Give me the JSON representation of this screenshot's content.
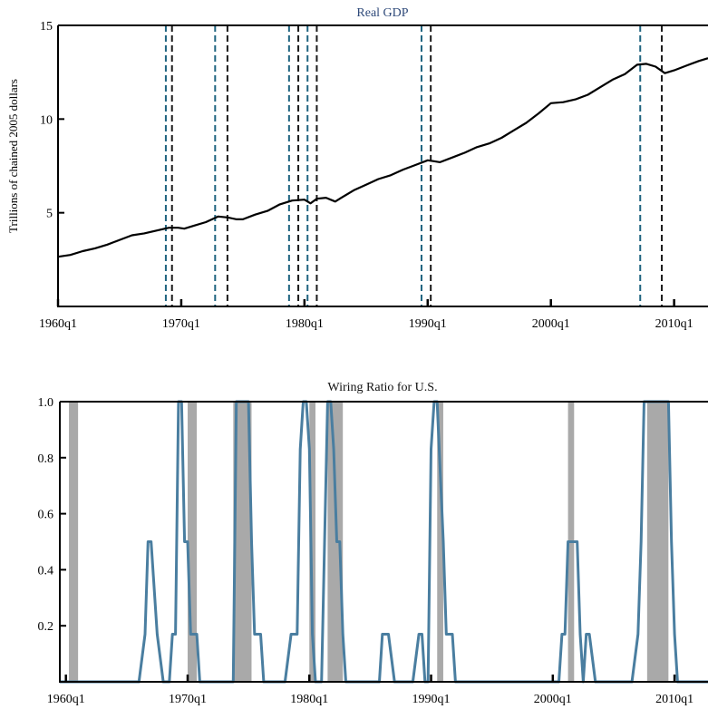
{
  "chart_data": [
    {
      "type": "line",
      "title": "Real GDP",
      "xlabel": "",
      "ylabel": "Trillions of chained 2005 dollars",
      "xlim": [
        1960.0,
        2012.75
      ],
      "ylim": [
        0,
        15
      ],
      "yticks": [
        5,
        10,
        15
      ],
      "xtick_labels": [
        "1960q1",
        "1970q1",
        "1980q1",
        "1990q1",
        "2000q1",
        "2010q1"
      ],
      "grid": false,
      "series": [
        {
          "name": "",
          "x": [
            1960.0,
            1961.0,
            1962.0,
            1963.0,
            1964.0,
            1965.0,
            1966.0,
            1967.0,
            1968.0,
            1969.0,
            1969.75,
            1970.25,
            1971.0,
            1972.0,
            1973.0,
            1973.75,
            1974.5,
            1975.0,
            1976.0,
            1977.0,
            1978.0,
            1979.0,
            1980.0,
            1980.5,
            1981.0,
            1981.75,
            1982.5,
            1983.0,
            1984.0,
            1985.0,
            1986.0,
            1987.0,
            1988.0,
            1989.0,
            1990.0,
            1990.5,
            1991.0,
            1992.0,
            1993.0,
            1994.0,
            1995.0,
            1996.0,
            1997.0,
            1998.0,
            1999.0,
            2000.0,
            2001.0,
            2002.0,
            2003.0,
            2004.0,
            2005.0,
            2006.0,
            2007.0,
            2007.75,
            2008.5,
            2009.25,
            2010.0,
            2011.0,
            2012.0,
            2012.75
          ],
          "values": [
            2.65,
            2.75,
            2.95,
            3.1,
            3.3,
            3.55,
            3.8,
            3.9,
            4.05,
            4.2,
            4.2,
            4.15,
            4.3,
            4.5,
            4.8,
            4.75,
            4.65,
            4.65,
            4.9,
            5.1,
            5.45,
            5.65,
            5.7,
            5.5,
            5.75,
            5.8,
            5.6,
            5.8,
            6.2,
            6.5,
            6.8,
            7.0,
            7.3,
            7.55,
            7.8,
            7.75,
            7.7,
            7.95,
            8.2,
            8.5,
            8.7,
            9.0,
            9.4,
            9.8,
            10.3,
            10.85,
            10.9,
            11.05,
            11.3,
            11.7,
            12.1,
            12.4,
            12.9,
            12.95,
            12.8,
            12.45,
            12.6,
            12.85,
            13.1,
            13.25
          ]
        }
      ],
      "vlines_blue": [
        1968.75,
        1972.75,
        1978.75,
        1980.25,
        1989.5,
        2007.25
      ],
      "vlines_black": [
        1969.25,
        1973.75,
        1979.5,
        1981.0,
        1990.25,
        2009.0
      ]
    },
    {
      "type": "line",
      "title": "Wiring Ratio for U.S.",
      "xlabel": "",
      "ylabel": "",
      "xlim": [
        1959.5,
        2012.75
      ],
      "ylim": [
        0,
        1.0
      ],
      "yticks": [
        0.2,
        0.4,
        0.6,
        0.8,
        1.0
      ],
      "ytick_labels": [
        "0.2",
        "0.4",
        "0.6",
        "0.8",
        "1.0"
      ],
      "xtick_labels": [
        "1960q1",
        "1970q1",
        "1980q1",
        "1990q1",
        "2000q1",
        "2010q1"
      ],
      "grid": false,
      "shaded_periods": [
        [
          1960.25,
          1961.0
        ],
        [
          1970.0,
          1970.75
        ],
        [
          1973.75,
          1975.25
        ],
        [
          1980.0,
          1980.5
        ],
        [
          1981.5,
          1982.75
        ],
        [
          1990.5,
          1991.0
        ],
        [
          2001.25,
          2001.75
        ],
        [
          2007.75,
          2009.5
        ]
      ],
      "series": [
        {
          "name": "",
          "x": [
            1959.5,
            1966.0,
            1966.5,
            1966.75,
            1967.0,
            1967.5,
            1968.0,
            1968.5,
            1968.75,
            1969.0,
            1969.25,
            1969.5,
            1969.75,
            1970.0,
            1970.25,
            1970.5,
            1970.75,
            1971.0,
            1971.25,
            1973.75,
            1974.0,
            1975.0,
            1975.25,
            1975.5,
            1975.75,
            1976.0,
            1976.25,
            1978.0,
            1978.5,
            1979.0,
            1979.25,
            1979.5,
            1979.75,
            1980.0,
            1980.25,
            1980.5,
            1980.75,
            1981.0,
            1981.5,
            1981.75,
            1982.0,
            1982.25,
            1982.5,
            1982.75,
            1983.0,
            1983.5,
            1985.75,
            1986.0,
            1986.5,
            1987.0,
            1987.25,
            1988.5,
            1989.0,
            1989.25,
            1989.5,
            1989.75,
            1990.0,
            1990.25,
            1990.5,
            1991.0,
            1991.25,
            1991.5,
            1991.75,
            1992.0,
            1992.25,
            2000.5,
            2000.75,
            2001.0,
            2001.25,
            2002.0,
            2002.25,
            2002.5,
            2002.75,
            2003.0,
            2003.5,
            2004.0,
            2004.25,
            2004.5,
            2006.0,
            2006.5,
            2007.0,
            2007.25,
            2007.5,
            2008.0,
            2009.5,
            2009.75,
            2010.0,
            2010.25,
            2012.75
          ],
          "values": [
            0,
            0,
            0.17,
            0.5,
            0.5,
            0.17,
            0,
            0,
            0.17,
            0.17,
            1.0,
            1.0,
            0.5,
            0.5,
            0.17,
            0.17,
            0.17,
            0,
            0,
            0,
            1.0,
            1.0,
            0.5,
            0.17,
            0.17,
            0.17,
            0,
            0,
            0.17,
            0.17,
            0.83,
            1.0,
            1.0,
            0.83,
            0.17,
            0,
            0,
            0,
            1.0,
            1.0,
            0.83,
            0.5,
            0.5,
            0.17,
            0,
            0,
            0,
            0.17,
            0.17,
            0,
            0,
            0,
            0.17,
            0.17,
            0,
            0,
            0.83,
            1.0,
            1.0,
            0.5,
            0.17,
            0.17,
            0.17,
            0,
            0,
            0,
            0.17,
            0.17,
            0.5,
            0.5,
            0.17,
            0,
            0.17,
            0.17,
            0,
            0,
            0,
            0,
            0,
            0,
            0.17,
            0.5,
            1.0,
            1.0,
            1.0,
            0.5,
            0.17,
            0,
            0
          ]
        }
      ]
    }
  ],
  "colors": {
    "gdp_line": "#000000",
    "wiring_line": "#4a7ea0",
    "shade": "#a9a9a9",
    "vline_blue": "#1f6480",
    "vline_black": "#1a1a1a",
    "top_title": "#2f4a7a",
    "axis": "#000000"
  }
}
